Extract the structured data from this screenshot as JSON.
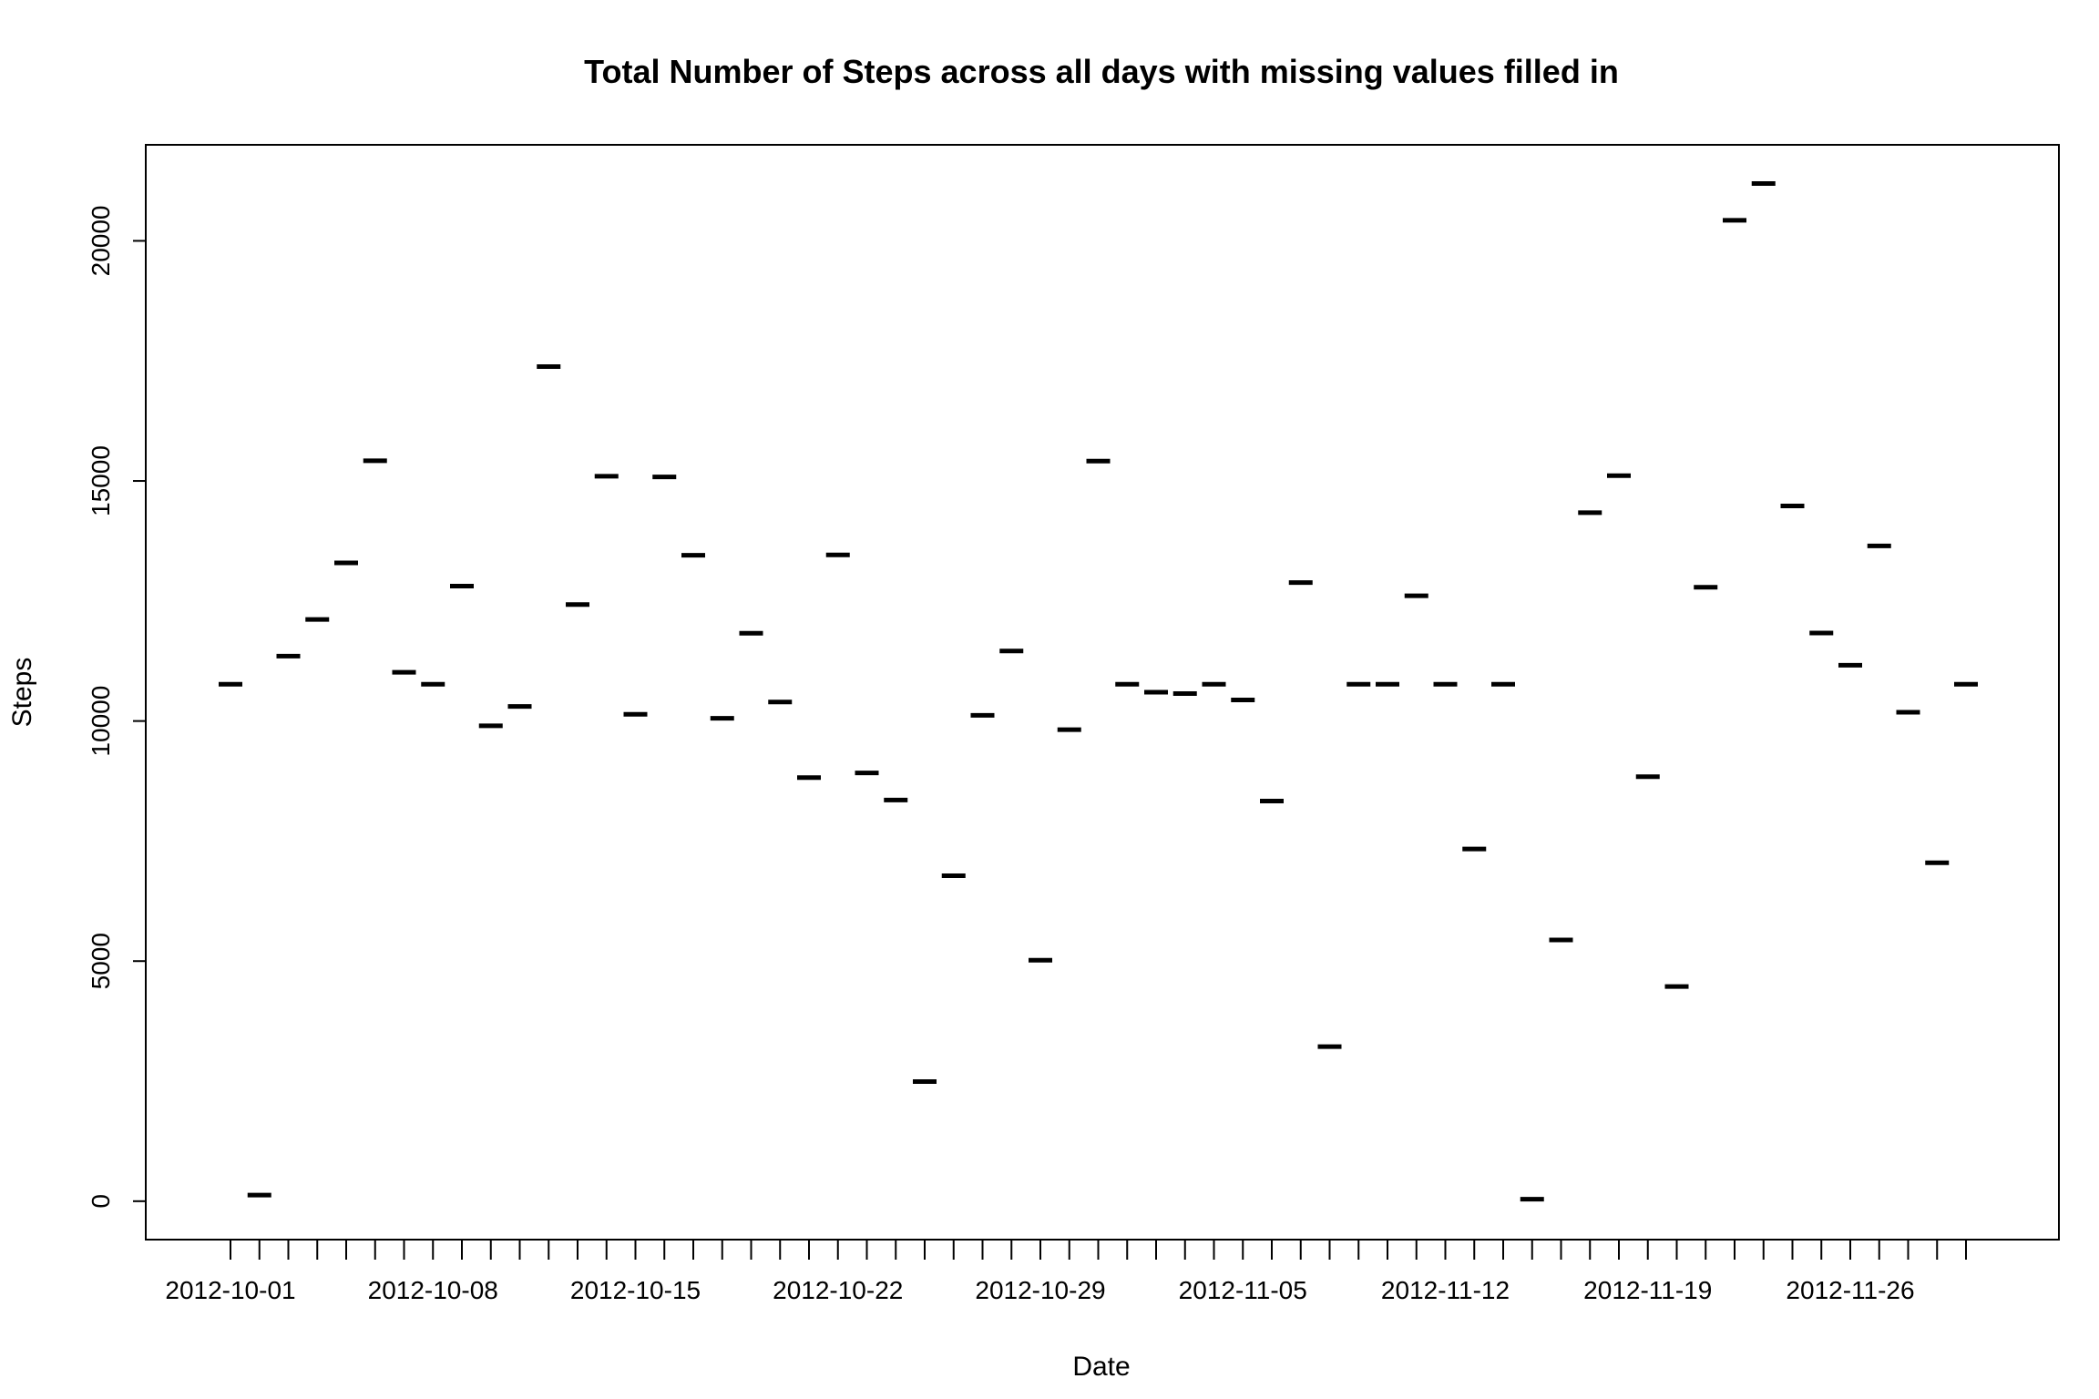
{
  "chart_data": {
    "type": "scatter",
    "marker": "horizontal-dash",
    "title": "Total Number of Steps across all days with missing values filled in",
    "xlabel": "Date",
    "ylabel": "Steps",
    "ylim": [
      -800,
      22000
    ],
    "yticks": [
      0,
      5000,
      10000,
      15000,
      20000
    ],
    "x_tick_labels": [
      "2012-10-01",
      "2012-10-08",
      "2012-10-15",
      "2012-10-22",
      "2012-10-29",
      "2012-11-05",
      "2012-11-12",
      "2012-11-19",
      "2012-11-26"
    ],
    "grid": false,
    "x": [
      "2012-10-01",
      "2012-10-02",
      "2012-10-03",
      "2012-10-04",
      "2012-10-05",
      "2012-10-06",
      "2012-10-07",
      "2012-10-08",
      "2012-10-09",
      "2012-10-10",
      "2012-10-11",
      "2012-10-12",
      "2012-10-13",
      "2012-10-14",
      "2012-10-15",
      "2012-10-16",
      "2012-10-17",
      "2012-10-18",
      "2012-10-19",
      "2012-10-20",
      "2012-10-21",
      "2012-10-22",
      "2012-10-23",
      "2012-10-24",
      "2012-10-25",
      "2012-10-26",
      "2012-10-27",
      "2012-10-28",
      "2012-10-29",
      "2012-10-30",
      "2012-10-31",
      "2012-11-01",
      "2012-11-02",
      "2012-11-03",
      "2012-11-04",
      "2012-11-05",
      "2012-11-06",
      "2012-11-07",
      "2012-11-08",
      "2012-11-09",
      "2012-11-10",
      "2012-11-11",
      "2012-11-12",
      "2012-11-13",
      "2012-11-14",
      "2012-11-15",
      "2012-11-16",
      "2012-11-17",
      "2012-11-18",
      "2012-11-19",
      "2012-11-20",
      "2012-11-21",
      "2012-11-22",
      "2012-11-23",
      "2012-11-24",
      "2012-11-25",
      "2012-11-26",
      "2012-11-27",
      "2012-11-28",
      "2012-11-29",
      "2012-11-30"
    ],
    "y": [
      10766,
      126,
      11352,
      12116,
      13294,
      15420,
      11015,
      10766,
      12811,
      9900,
      10304,
      17382,
      12426,
      15098,
      10139,
      15084,
      13452,
      10056,
      11829,
      10395,
      8821,
      13460,
      8918,
      8355,
      2492,
      6778,
      10119,
      11458,
      5018,
      9819,
      15414,
      10766,
      10600,
      10571,
      10766,
      10439,
      8334,
      12883,
      3219,
      10766,
      10766,
      12608,
      10765,
      7336,
      10766,
      41,
      5441,
      14339,
      15110,
      8841,
      4472,
      12787,
      20427,
      21194,
      14478,
      11834,
      11162,
      13646,
      10183,
      7047,
      10766
    ]
  }
}
